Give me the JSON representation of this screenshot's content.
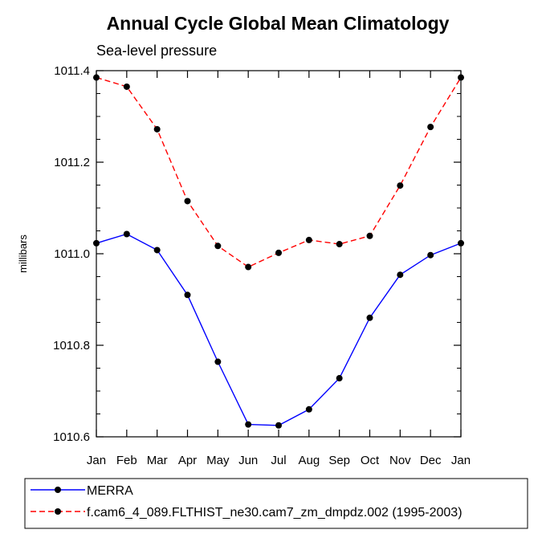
{
  "chart_data": {
    "type": "line",
    "title": "Annual Cycle Global Mean Climatology",
    "subtitle": "Sea-level pressure",
    "xlabel": "",
    "ylabel": "millibars",
    "categories": [
      "Jan",
      "Feb",
      "Mar",
      "Apr",
      "May",
      "Jun",
      "Jul",
      "Aug",
      "Sep",
      "Oct",
      "Nov",
      "Dec",
      "Jan"
    ],
    "ylim": [
      1010.6,
      1011.4
    ],
    "yticks": [
      "1010.6",
      "1010.8",
      "1011.0",
      "1011.2",
      "1011.4"
    ],
    "grid": false,
    "legend_position": "bottom",
    "series": [
      {
        "name": "MERRA",
        "color": "#0000ff",
        "style": "solid",
        "marker": "filled-circle",
        "values": [
          1011.023,
          1011.043,
          1011.008,
          1010.91,
          1010.764,
          1010.627,
          1010.625,
          1010.66,
          1010.728,
          1010.86,
          1010.954,
          1010.997,
          1011.023
        ]
      },
      {
        "name": "f.cam6_4_089.FLTHIST_ne30.cam7_zm_dmpdz.002 (1995-2003)",
        "color": "#ff0000",
        "style": "dashed",
        "marker": "filled-circle",
        "values": [
          1011.385,
          1011.365,
          1011.272,
          1011.115,
          1011.017,
          1010.971,
          1011.002,
          1011.03,
          1011.021,
          1011.039,
          1011.149,
          1011.277,
          1011.385
        ]
      }
    ]
  }
}
